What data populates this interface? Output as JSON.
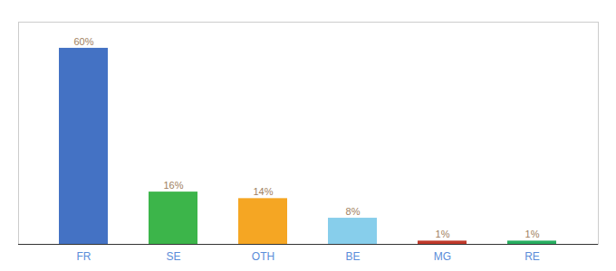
{
  "chart_data": {
    "type": "bar",
    "categories": [
      "FR",
      "SE",
      "OTH",
      "BE",
      "MG",
      "RE"
    ],
    "values": [
      60,
      16,
      14,
      8,
      1,
      1
    ],
    "value_labels": [
      "60%",
      "16%",
      "14%",
      "8%",
      "1%",
      "1%"
    ],
    "colors": [
      "#4472c4",
      "#3cb54a",
      "#f5a623",
      "#87ceeb",
      "#c0392b",
      "#27ae60"
    ],
    "ylim": [
      0,
      68
    ],
    "data_labels": true,
    "tick_labels": "x",
    "grid": false
  }
}
